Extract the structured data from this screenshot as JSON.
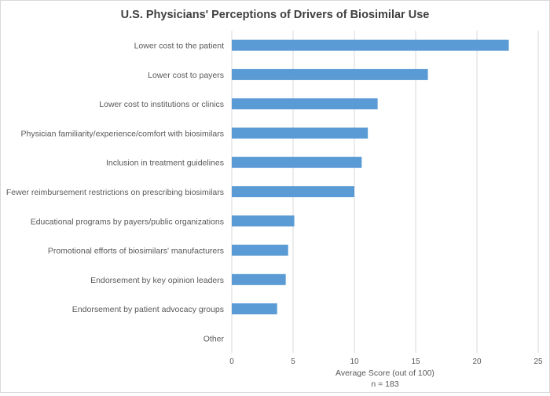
{
  "chart_data": {
    "type": "bar",
    "orientation": "horizontal",
    "title": "U.S. Physicians' Perceptions of Drivers of Biosimilar Use",
    "xlabel": "Average Score (out of 100)",
    "note": "n = 183",
    "xlim": [
      0,
      25
    ],
    "xticks": [
      0,
      5,
      10,
      15,
      20,
      25
    ],
    "categories": [
      "Lower cost to the patient",
      "Lower cost to payers",
      "Lower cost to institutions or clinics",
      "Physician familiarity/experience/comfort with biosimilars",
      "Inclusion in treatment guidelines",
      "Fewer reimbursement restrictions on prescribing biosimilars",
      "Educational programs by payers/public organizations",
      "Promotional efforts of biosimilars' manufacturers",
      "Endorsement by key opinion leaders",
      "Endorsement by patient advocacy groups",
      "Other"
    ],
    "values": [
      22.6,
      16.0,
      11.9,
      11.1,
      10.6,
      10.0,
      5.1,
      4.6,
      4.4,
      3.7,
      0
    ],
    "grid": "vertical",
    "legend": "none",
    "colors": {
      "bar": "#5b9bd5",
      "grid": "#d9d9d9",
      "text": "#595959",
      "title": "#404040"
    }
  }
}
